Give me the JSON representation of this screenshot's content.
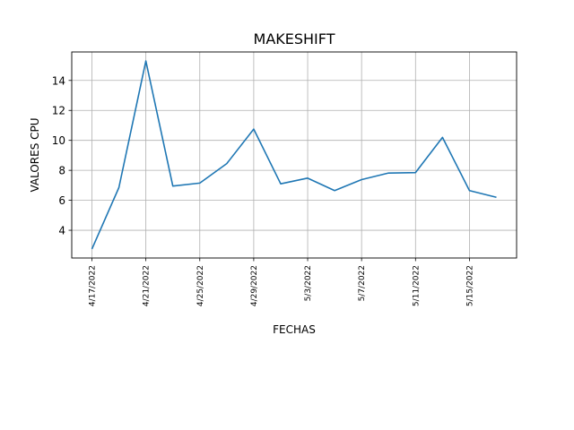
{
  "chart_data": {
    "type": "line",
    "title": "MAKESHIFT",
    "xlabel": "FECHAS",
    "ylabel": "VALORES CPU",
    "x": [
      "4/17/2022",
      "4/19/2022",
      "4/21/2022",
      "4/23/2022",
      "4/25/2022",
      "4/27/2022",
      "4/29/2022",
      "5/1/2022",
      "5/3/2022",
      "5/5/2022",
      "5/7/2022",
      "5/9/2022",
      "5/11/2022",
      "5/13/2022",
      "5/15/2022",
      "5/17/2022"
    ],
    "series": [
      {
        "values": [
          2.75,
          6.85,
          15.3,
          6.95,
          7.15,
          8.45,
          10.75,
          7.1,
          7.48,
          6.65,
          7.38,
          7.82,
          7.85,
          10.2,
          6.65,
          6.2
        ],
        "color": "#1f77b4"
      }
    ],
    "xticks": [
      "4/17/2022",
      "4/21/2022",
      "4/25/2022",
      "4/29/2022",
      "5/3/2022",
      "5/7/2022",
      "5/11/2022",
      "5/15/2022"
    ],
    "yticks": [
      4,
      6,
      8,
      10,
      12,
      14
    ],
    "ylim": [
      2.15,
      15.9
    ],
    "grid": true
  }
}
